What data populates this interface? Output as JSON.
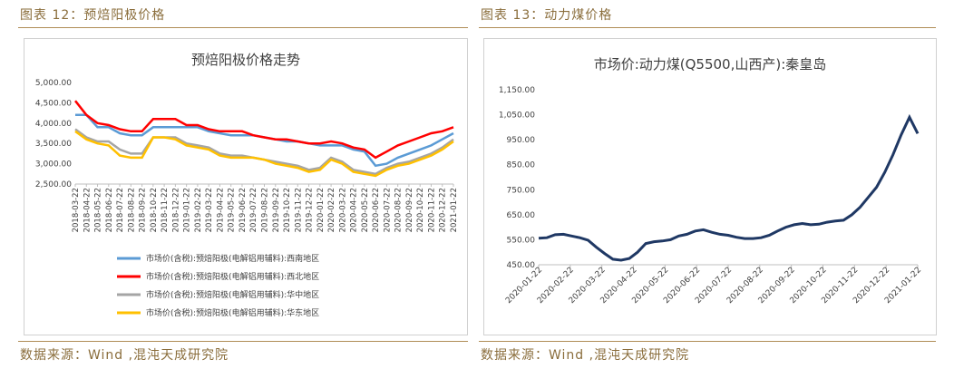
{
  "captions": {
    "left": "图表 12：预焙阳极价格",
    "right": "图表 13：动力煤价格"
  },
  "sources": {
    "left": "数据来源：Wind ,混沌天成研究院",
    "right": "数据来源：Wind ,混沌天成研究院"
  },
  "colors": {
    "caption": "#8a6d3b",
    "rule": "#b08d57"
  },
  "chart_data": [
    {
      "type": "line",
      "title": "预焙阳极价格走势",
      "ylim": [
        2500,
        5000
      ],
      "yticks": [
        2500,
        3000,
        3500,
        4000,
        4500,
        5000
      ],
      "ytick_labels": [
        "2,500.00",
        "3,000.00",
        "3,500.00",
        "4,000.00",
        "4,500.00",
        "5,000.00"
      ],
      "xtick_labels": [
        "2018-03-22",
        "2018-04-22",
        "2018-05-22",
        "2018-06-22",
        "2018-07-22",
        "2018-08-22",
        "2018-09-22",
        "2018-10-22",
        "2018-11-22",
        "2018-12-22",
        "2019-01-22",
        "2019-02-22",
        "2019-03-22",
        "2019-04-22",
        "2019-05-22",
        "2019-06-22",
        "2019-07-22",
        "2019-08-22",
        "2019-09-22",
        "2019-10-22",
        "2019-11-22",
        "2019-12-22",
        "2020-01-22",
        "2020-02-22",
        "2020-03-22",
        "2020-04-22",
        "2020-05-22",
        "2020-06-22",
        "2020-07-22",
        "2020-08-22",
        "2020-09-22",
        "2020-10-22",
        "2020-11-22",
        "2020-12-22",
        "2021-01-22"
      ],
      "grid": false,
      "legend_position": "bottom",
      "series": [
        {
          "name": "市场价(含税):预焙阳极(电解铝用辅料):西南地区",
          "color": "#5b9bd5",
          "values": [
            4200,
            4200,
            3900,
            3900,
            3750,
            3700,
            3700,
            3900,
            3900,
            3900,
            3900,
            3900,
            3800,
            3750,
            3700,
            3700,
            3700,
            3650,
            3600,
            3550,
            3550,
            3500,
            3450,
            3450,
            3450,
            3350,
            3300,
            2950,
            3000,
            3150,
            3250,
            3350,
            3450,
            3600,
            3750
          ]
        },
        {
          "name": "市场价(含税):预焙阳极(电解铝用辅料):西北地区",
          "color": "#ff0000",
          "values": [
            4550,
            4200,
            4000,
            3950,
            3850,
            3800,
            3800,
            4100,
            4100,
            4100,
            3950,
            3950,
            3850,
            3800,
            3800,
            3800,
            3700,
            3650,
            3600,
            3600,
            3550,
            3500,
            3500,
            3550,
            3500,
            3400,
            3350,
            3150,
            3300,
            3450,
            3550,
            3650,
            3750,
            3800,
            3900
          ]
        },
        {
          "name": "市场价(含税):预焙阳极(电解铝用辅料):华中地区",
          "color": "#a5a5a5",
          "values": [
            3850,
            3650,
            3550,
            3550,
            3350,
            3250,
            3250,
            3650,
            3650,
            3650,
            3500,
            3450,
            3400,
            3250,
            3200,
            3200,
            3150,
            3100,
            3050,
            3000,
            2950,
            2850,
            2900,
            3150,
            3050,
            2850,
            2800,
            2750,
            2900,
            3000,
            3050,
            3150,
            3250,
            3400,
            3600
          ]
        },
        {
          "name": "市场价(含税):预焙阳极(电解铝用辅料):华东地区",
          "color": "#ffc000",
          "values": [
            3800,
            3600,
            3500,
            3450,
            3200,
            3150,
            3150,
            3650,
            3650,
            3600,
            3450,
            3400,
            3350,
            3200,
            3150,
            3150,
            3150,
            3100,
            3000,
            2950,
            2900,
            2800,
            2850,
            3100,
            3000,
            2800,
            2750,
            2700,
            2850,
            2950,
            3000,
            3100,
            3200,
            3350,
            3550
          ]
        }
      ]
    },
    {
      "type": "line",
      "title": "市场价:动力煤(Q5500,山西产):秦皇岛",
      "ylim": [
        450,
        1150
      ],
      "yticks": [
        450,
        550,
        650,
        750,
        850,
        950,
        1050,
        1150
      ],
      "ytick_labels": [
        "450.00",
        "550.00",
        "650.00",
        "750.00",
        "850.00",
        "950.00",
        "1,050.00",
        "1,150.00"
      ],
      "xtick_labels": [
        "2020-01-22",
        "2020-02-22",
        "2020-03-22",
        "2020-04-22",
        "2020-05-22",
        "2020-06-22",
        "2020-07-22",
        "2020-08-22",
        "2020-09-22",
        "2020-10-22",
        "2020-11-22",
        "2020-12-22",
        "2021-01-22"
      ],
      "grid": false,
      "series": [
        {
          "color": "#1f3864",
          "values": [
            556,
            558,
            570,
            572,
            565,
            558,
            548,
            520,
            495,
            472,
            468,
            475,
            500,
            535,
            542,
            545,
            550,
            565,
            572,
            585,
            590,
            580,
            572,
            568,
            560,
            555,
            555,
            558,
            568,
            585,
            600,
            610,
            615,
            610,
            612,
            620,
            625,
            628,
            650,
            680,
            720,
            760,
            820,
            890,
            970,
            1040,
            975
          ]
        }
      ]
    }
  ]
}
